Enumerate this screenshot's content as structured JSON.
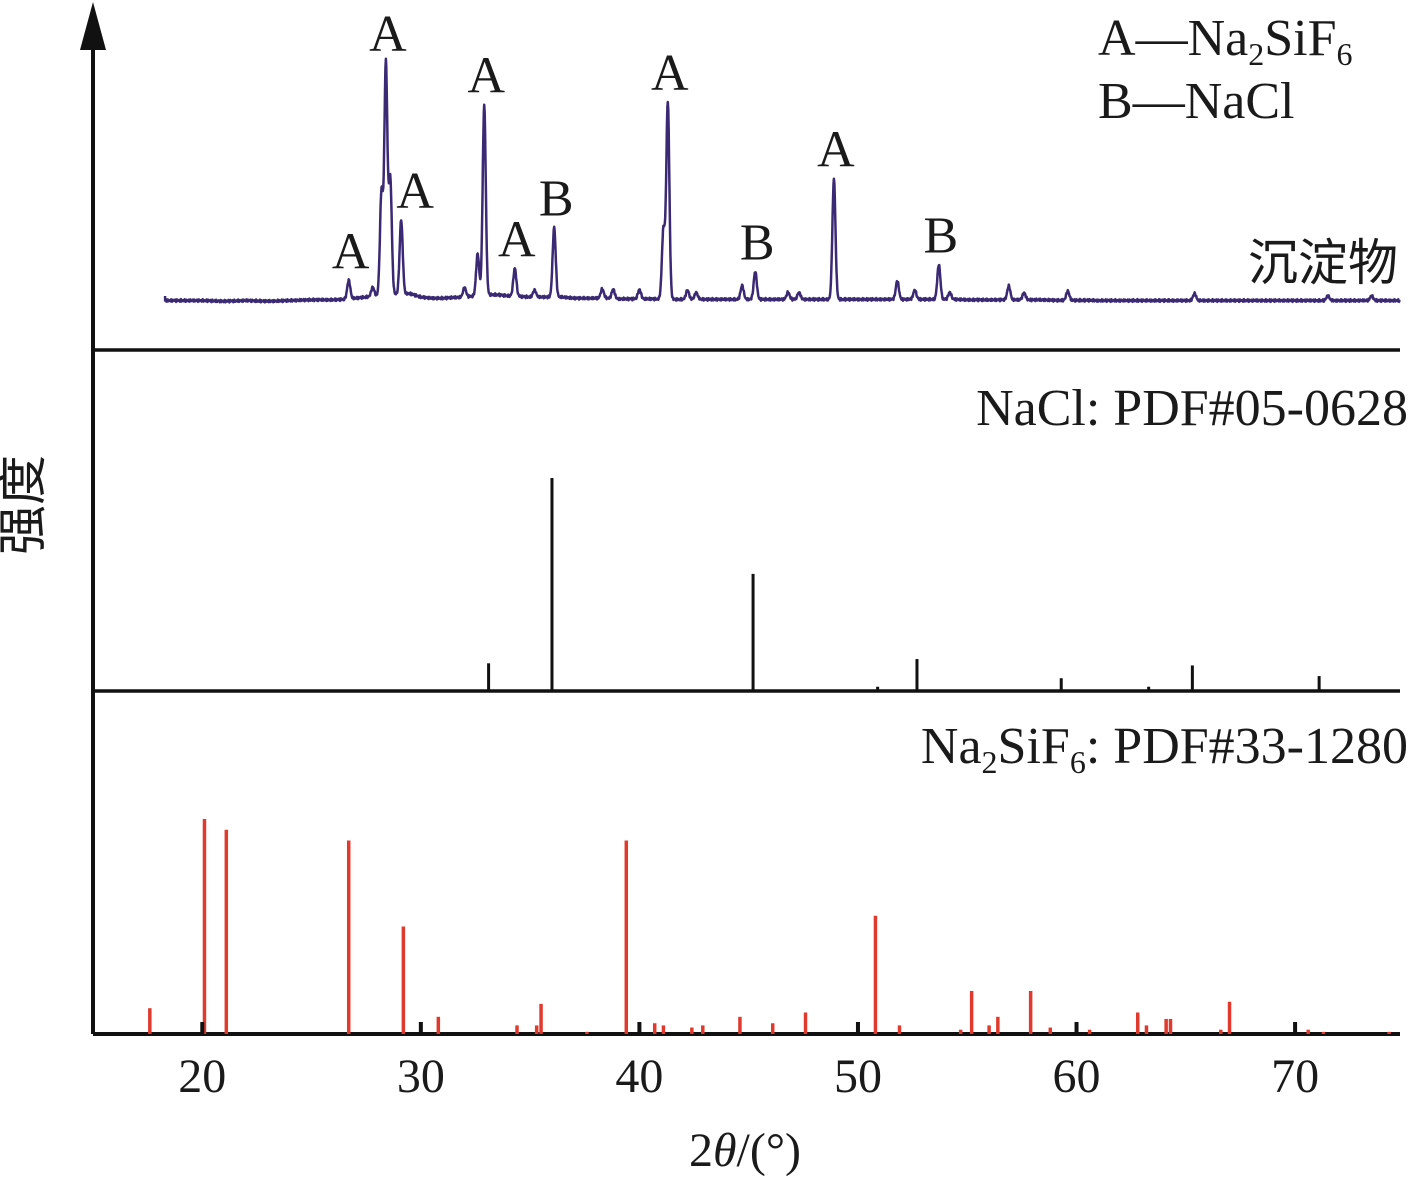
{
  "chart_data": {
    "type": "line",
    "ylabel": "强度",
    "xlabel": "2θ/(°)",
    "xlabel_parts": {
      "pre": "2",
      "theta": "θ",
      "post": "/(°)"
    },
    "xlim": [
      15,
      74.8
    ],
    "x_ticks": [
      20,
      30,
      40,
      50,
      60,
      70
    ],
    "x_tick_labels": [
      "20",
      "30",
      "40",
      "50",
      "60",
      "70"
    ],
    "colors": {
      "sample": "#3b2a73",
      "nacl": "#111111",
      "na2sif6": "#e03a2e",
      "axis": "#111111"
    },
    "legend": {
      "position": "top-right",
      "items": [
        {
          "letter": "A",
          "dash": "—",
          "formula": "Na",
          "sub1": "2",
          "mid": "SiF",
          "sub2": "6"
        },
        {
          "letter": "B",
          "dash": "—",
          "formula": "NaCl"
        }
      ]
    },
    "panels": [
      {
        "name": "sample",
        "label": "沉淀物",
        "kind": "profile",
        "baseline_x": [
          18.3,
          19,
          20,
          21,
          22,
          23,
          24,
          25,
          26,
          26.5,
          27,
          27.5,
          28,
          28.5,
          29.5,
          30,
          30.5,
          31,
          31.5,
          32,
          32.5,
          33,
          33.5,
          34,
          35,
          35.5,
          36.5,
          37,
          37.5,
          38,
          38.5,
          39,
          39.5,
          40,
          40.5,
          41.5,
          42,
          42.5,
          43,
          43.5,
          44,
          44.5,
          45,
          46,
          46.5,
          47,
          47.5,
          48,
          48.5,
          49.3,
          49.8,
          50.5,
          51,
          51.5,
          52,
          52.5,
          53,
          53.5,
          54.5,
          55,
          55.5,
          56,
          56.5,
          57,
          57.5,
          58,
          58.5,
          59,
          59.5,
          60,
          60.5,
          61,
          62,
          63,
          64,
          65,
          66,
          67,
          68,
          69,
          70,
          71,
          72,
          73,
          74,
          74.8
        ],
        "baseline_y": [
          1.5,
          1.5,
          1.5,
          1.2,
          1.5,
          1.2,
          1.5,
          1.8,
          1.8,
          2.0,
          2.5,
          3.0,
          3.5,
          4.0,
          4.5,
          3.0,
          2.5,
          2.5,
          2.8,
          3.0,
          3.5,
          4.0,
          4.0,
          3.5,
          3.0,
          3.0,
          3.0,
          2.5,
          2.5,
          2.5,
          2.5,
          2.2,
          2.2,
          2.2,
          2.2,
          2.0,
          2.0,
          2.0,
          2.0,
          2.0,
          2.0,
          2.0,
          2.0,
          2.0,
          2.0,
          2.0,
          2.0,
          2.0,
          2.0,
          2.0,
          2.0,
          2.0,
          2.0,
          2.0,
          2.0,
          2.0,
          2.0,
          2.0,
          2.0,
          1.8,
          1.8,
          1.8,
          1.8,
          1.8,
          1.8,
          1.8,
          1.8,
          1.6,
          1.6,
          1.6,
          1.6,
          1.5,
          1.5,
          1.5,
          1.5,
          1.5,
          1.5,
          1.5,
          1.5,
          1.5,
          1.5,
          1.5,
          1.5,
          1.5,
          1.5,
          1.5
        ],
        "peaks": [
          {
            "x": 26.7,
            "y": 8,
            "label": "A"
          },
          {
            "x": 27.8,
            "y": 4,
            "label": ""
          },
          {
            "x": 28.2,
            "y": 45,
            "label": ""
          },
          {
            "x": 28.4,
            "y": 100,
            "label": "A"
          },
          {
            "x": 28.6,
            "y": 50,
            "label": ""
          },
          {
            "x": 29.1,
            "y": 32,
            "label": "A"
          },
          {
            "x": 32.0,
            "y": 4,
            "label": ""
          },
          {
            "x": 32.6,
            "y": 18,
            "label": ""
          },
          {
            "x": 32.9,
            "y": 82,
            "label": "A"
          },
          {
            "x": 34.3,
            "y": 12,
            "label": "A"
          },
          {
            "x": 35.2,
            "y": 3,
            "label": ""
          },
          {
            "x": 36.1,
            "y": 30,
            "label": "B"
          },
          {
            "x": 38.3,
            "y": 4,
            "label": ""
          },
          {
            "x": 38.8,
            "y": 4,
            "label": ""
          },
          {
            "x": 40.0,
            "y": 4,
            "label": ""
          },
          {
            "x": 41.1,
            "y": 30,
            "label": ""
          },
          {
            "x": 41.3,
            "y": 85,
            "label": "A"
          },
          {
            "x": 42.2,
            "y": 4,
            "label": ""
          },
          {
            "x": 42.6,
            "y": 3,
            "label": ""
          },
          {
            "x": 44.7,
            "y": 6,
            "label": ""
          },
          {
            "x": 45.3,
            "y": 12,
            "label": "B"
          },
          {
            "x": 46.8,
            "y": 3,
            "label": ""
          },
          {
            "x": 47.3,
            "y": 3,
            "label": ""
          },
          {
            "x": 48.9,
            "y": 52,
            "label": "A"
          },
          {
            "x": 51.8,
            "y": 8,
            "label": ""
          },
          {
            "x": 52.6,
            "y": 4,
            "label": ""
          },
          {
            "x": 53.7,
            "y": 15,
            "label": "B"
          },
          {
            "x": 54.2,
            "y": 3,
            "label": ""
          },
          {
            "x": 56.9,
            "y": 6,
            "label": ""
          },
          {
            "x": 57.6,
            "y": 3,
            "label": ""
          },
          {
            "x": 59.6,
            "y": 4,
            "label": ""
          },
          {
            "x": 65.4,
            "y": 3,
            "label": ""
          },
          {
            "x": 71.5,
            "y": 2,
            "label": ""
          },
          {
            "x": 73.5,
            "y": 2,
            "label": ""
          }
        ]
      },
      {
        "name": "nacl",
        "label": "NaCl: PDF#05-0628",
        "label_parts": {
          "formula": "NaCl",
          "sep": ": ",
          "code": "PDF#05-0628"
        },
        "kind": "sticks",
        "sticks": [
          {
            "x": 33.1,
            "y": 13
          },
          {
            "x": 36.0,
            "y": 100
          },
          {
            "x": 45.2,
            "y": 55
          },
          {
            "x": 50.9,
            "y": 2
          },
          {
            "x": 52.7,
            "y": 15
          },
          {
            "x": 59.3,
            "y": 6
          },
          {
            "x": 63.3,
            "y": 2
          },
          {
            "x": 65.3,
            "y": 12
          },
          {
            "x": 71.1,
            "y": 7
          }
        ]
      },
      {
        "name": "na2sif6",
        "label": "Na2SiF6: PDF#33-1280",
        "label_parts": {
          "formula": "Na",
          "sub1": "2",
          "mid": "SiF",
          "sub2": "6",
          "sep": ": ",
          "code": "PDF#33-1280"
        },
        "kind": "sticks",
        "sticks": [
          {
            "x": 17.6,
            "y": 12
          },
          {
            "x": 20.1,
            "y": 100
          },
          {
            "x": 21.1,
            "y": 95
          },
          {
            "x": 26.7,
            "y": 90
          },
          {
            "x": 29.2,
            "y": 50
          },
          {
            "x": 30.8,
            "y": 8
          },
          {
            "x": 34.4,
            "y": 4
          },
          {
            "x": 35.5,
            "y": 14
          },
          {
            "x": 35.3,
            "y": 4
          },
          {
            "x": 37.6,
            "y": 1
          },
          {
            "x": 39.4,
            "y": 90
          },
          {
            "x": 40.7,
            "y": 5
          },
          {
            "x": 41.1,
            "y": 4
          },
          {
            "x": 42.4,
            "y": 3
          },
          {
            "x": 42.9,
            "y": 4
          },
          {
            "x": 44.6,
            "y": 8
          },
          {
            "x": 46.1,
            "y": 5
          },
          {
            "x": 47.6,
            "y": 10
          },
          {
            "x": 50.8,
            "y": 55
          },
          {
            "x": 51.9,
            "y": 4
          },
          {
            "x": 54.7,
            "y": 2
          },
          {
            "x": 55.2,
            "y": 20
          },
          {
            "x": 56.0,
            "y": 4
          },
          {
            "x": 56.4,
            "y": 8
          },
          {
            "x": 57.9,
            "y": 20
          },
          {
            "x": 58.8,
            "y": 3
          },
          {
            "x": 60.6,
            "y": 2
          },
          {
            "x": 62.8,
            "y": 10
          },
          {
            "x": 63.2,
            "y": 4
          },
          {
            "x": 64.1,
            "y": 7
          },
          {
            "x": 64.3,
            "y": 7
          },
          {
            "x": 66.6,
            "y": 2
          },
          {
            "x": 67.0,
            "y": 15
          },
          {
            "x": 70.6,
            "y": 2
          },
          {
            "x": 71.3,
            "y": 1
          },
          {
            "x": 74.3,
            "y": 1
          }
        ]
      }
    ]
  }
}
